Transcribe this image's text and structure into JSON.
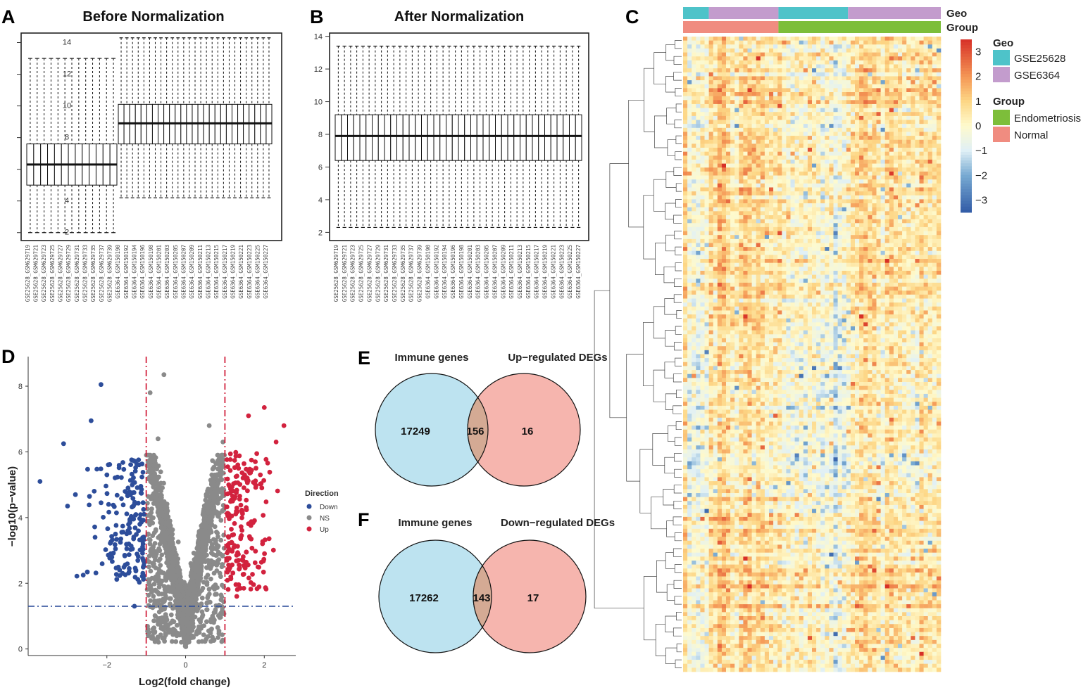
{
  "panels": {
    "A": "A",
    "B": "B",
    "C": "C",
    "D": "D",
    "E": "E",
    "F": "F"
  },
  "chart_data": [
    {
      "id": "A",
      "type": "box",
      "title": "Before Normalization",
      "ylim": [
        1.5,
        14.6
      ],
      "yticks_printed": [
        "14",
        "12",
        "10",
        "8",
        "6",
        "4",
        "2"
      ],
      "samples": [
        "GSE25628_GSM629719",
        "GSE25628_GSM629721",
        "GSE25628_GSM629723",
        "GSE25628_GSM629725",
        "GSE25628_GSM629727",
        "GSE25628_GSM629729",
        "GSE25628_GSM629731",
        "GSE25628_GSM629733",
        "GSE25628_GSM629735",
        "GSE25628_GSM629737",
        "GSE25628_GSM629739",
        "GSE6364_GSM150190",
        "GSE6364_GSM150192",
        "GSE6364_GSM150194",
        "GSE6364_GSM150196",
        "GSE6364_GSM150198",
        "GSE6364_GSM150201",
        "GSE6364_GSM150203",
        "GSE6364_GSM150205",
        "GSE6364_GSM150207",
        "GSE6364_GSM150209",
        "GSE6364_GSM150211",
        "GSE6364_GSM150213",
        "GSE6364_GSM150215",
        "GSE6364_GSM150217",
        "GSE6364_GSM150219",
        "GSE6364_GSM150221",
        "GSE6364_GSM150223",
        "GSE6364_GSM150225",
        "GSE6364_GSM150227"
      ],
      "groups": [
        {
          "name": "GSE25628",
          "count": 13,
          "min": 2.0,
          "q1": 5.0,
          "median": 6.3,
          "q3": 7.6,
          "max": 13.0
        },
        {
          "name": "GSE6364",
          "count": 27,
          "min": 4.2,
          "q1": 7.6,
          "median": 8.9,
          "q3": 10.1,
          "max": 14.3
        }
      ]
    },
    {
      "id": "B",
      "type": "box",
      "title": "After Normalization",
      "ylim": [
        1.5,
        14.2
      ],
      "yticks": [
        2,
        4,
        6,
        8,
        10,
        12,
        14
      ],
      "samples": [
        "GSE25628_GSM629719",
        "GSE25628_GSM629721",
        "GSE25628_GSM629723",
        "GSE25628_GSM629725",
        "GSE25628_GSM629727",
        "GSE25628_GSM629729",
        "GSE25628_GSM629731",
        "GSE25628_GSM629733",
        "GSE25628_GSM629735",
        "GSE25628_GSM629737",
        "GSE25628_GSM629739",
        "GSE6364_GSM150190",
        "GSE6364_GSM150192",
        "GSE6364_GSM150194",
        "GSE6364_GSM150196",
        "GSE6364_GSM150198",
        "GSE6364_GSM150201",
        "GSE6364_GSM150203",
        "GSE6364_GSM150205",
        "GSE6364_GSM150207",
        "GSE6364_GSM150209",
        "GSE6364_GSM150211",
        "GSE6364_GSM150213",
        "GSE6364_GSM150215",
        "GSE6364_GSM150217",
        "GSE6364_GSM150219",
        "GSE6364_GSM150221",
        "GSE6364_GSM150223",
        "GSE6364_GSM150225",
        "GSE6364_GSM150227"
      ],
      "box_count": 40,
      "min": 2.3,
      "q1": 6.4,
      "median": 7.9,
      "q3": 9.2,
      "max": 13.4
    },
    {
      "id": "C",
      "type": "heatmap",
      "legend_title_geo": "Geo",
      "legend_title_group": "Group",
      "top_labels": [
        "Geo",
        "Group"
      ],
      "geo": [
        {
          "label": "GSE25628",
          "color": "#4ec3c9"
        },
        {
          "label": "GSE6364",
          "color": "#c39ccd"
        }
      ],
      "group": [
        {
          "label": "Endometriosis",
          "color": "#7dbe3a"
        },
        {
          "label": "Normal",
          "color": "#f08c80"
        }
      ],
      "geo_annotation": [
        {
          "label": "GSE25628",
          "span": [
            0,
            0.1
          ]
        },
        {
          "label": "GSE6364",
          "span": [
            0.1,
            0.37
          ]
        },
        {
          "label": "GSE25628",
          "span": [
            0.37,
            0.64
          ]
        },
        {
          "label": "GSE6364",
          "span": [
            0.64,
            1.0
          ]
        }
      ],
      "group_annotation": [
        {
          "label": "Normal",
          "span": [
            0,
            0.37
          ]
        },
        {
          "label": "Endometriosis",
          "span": [
            0.37,
            1.0
          ]
        }
      ],
      "scale_ticks": [
        "3",
        "2",
        "1",
        "0",
        "−1",
        "−2",
        "−3"
      ],
      "scale_range": [
        -3.5,
        3.5
      ],
      "columns": 60,
      "rows": 160
    },
    {
      "id": "D",
      "type": "scatter",
      "xlabel": "Log2(fold change)",
      "ylabel": "−log10(p−value)",
      "xlim": [
        -4,
        2.8
      ],
      "ylim": [
        -0.2,
        8.9
      ],
      "xticks": [
        -2,
        0,
        2
      ],
      "yticks": [
        0,
        2,
        4,
        6,
        8
      ],
      "xtick_labels": [
        "−2",
        "0",
        "2"
      ],
      "vlines": [
        -1,
        1
      ],
      "hline": 1.3,
      "legend_title": "Direction",
      "series": [
        {
          "name": "Down",
          "color": "#2d4d9a"
        },
        {
          "name": "NS",
          "color": "#8a8a8a"
        },
        {
          "name": "Up",
          "color": "#d2223e"
        }
      ]
    },
    {
      "id": "E",
      "type": "venn",
      "left_label": "Immune genes",
      "right_label": "Up−regulated DEGs",
      "left_only": 17249,
      "both": 156,
      "right_only": 16
    },
    {
      "id": "F",
      "type": "venn",
      "left_label": "Immune genes",
      "right_label": "Down−regulated DEGs",
      "left_only": 17262,
      "both": 143,
      "right_only": 17
    }
  ],
  "colors": {
    "venn_left": "#bde3f0",
    "venn_right": "#f6b5ae",
    "venn_overlap": "#d4aa94"
  }
}
